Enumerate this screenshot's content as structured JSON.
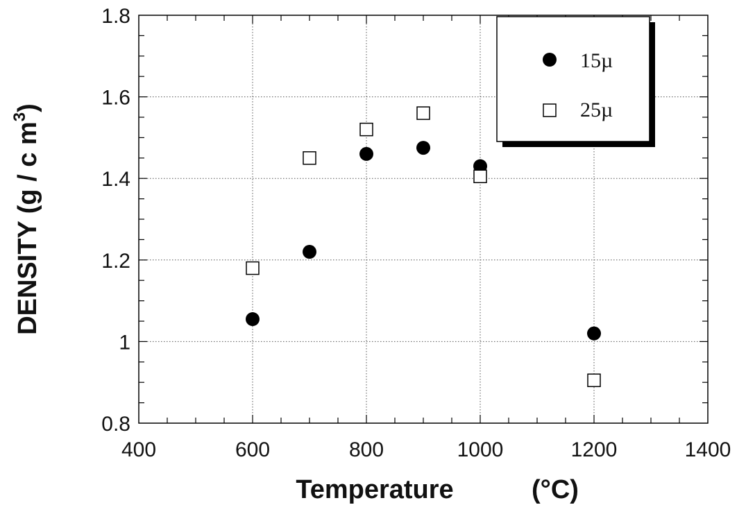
{
  "chart_data": {
    "type": "scatter",
    "xlabel": "Temperature (°C)",
    "ylabel": "DENSITY (g/cm³)",
    "ylabel_main": "DENSITY (g / c m",
    "ylabel_sup": "3",
    "ylabel_close": ")",
    "xlabel_main": "Temperature",
    "xlabel_unit": "(°C)",
    "xlim": [
      400,
      1400
    ],
    "ylim": [
      0.8,
      1.8
    ],
    "xticks": [
      "400",
      "600",
      "800",
      "1000",
      "1200",
      "1400"
    ],
    "yticks": [
      "0.8",
      "1",
      "1.2",
      "1.4",
      "1.6",
      "1.8"
    ],
    "grid": true,
    "legend_position": "top-right",
    "series": [
      {
        "name": "15µ",
        "marker": "filled-circle",
        "color": "#000000",
        "points": [
          [
            600,
            1.055
          ],
          [
            700,
            1.22
          ],
          [
            800,
            1.46
          ],
          [
            900,
            1.475
          ],
          [
            1000,
            1.43
          ],
          [
            1200,
            1.02
          ]
        ]
      },
      {
        "name": "25µ",
        "marker": "open-square",
        "color": "#000000",
        "points": [
          [
            600,
            1.18
          ],
          [
            700,
            1.45
          ],
          [
            800,
            1.52
          ],
          [
            900,
            1.56
          ],
          [
            1000,
            1.405
          ],
          [
            1200,
            0.905
          ]
        ]
      }
    ]
  }
}
